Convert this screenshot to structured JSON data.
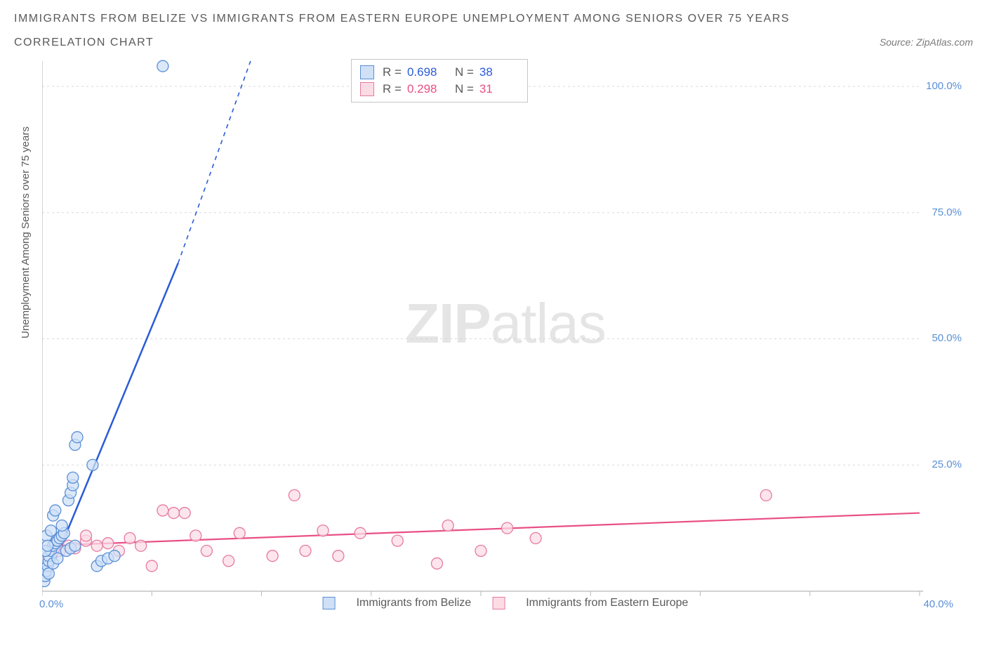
{
  "title": "IMMIGRANTS FROM BELIZE VS IMMIGRANTS FROM EASTERN EUROPE UNEMPLOYMENT AMONG SENIORS OVER 75 YEARS",
  "subtitle": "CORRELATION CHART",
  "source_label": "Source: ZipAtlas.com",
  "yaxis_label": "Unemployment Among Seniors over 75 years",
  "watermark_bold": "ZIP",
  "watermark_light": "atlas",
  "chart": {
    "type": "scatter",
    "background_color": "#ffffff",
    "grid_color": "#d9d9d9",
    "axis_color": "#b8b8b8",
    "x_range": [
      0,
      40
    ],
    "y_range": [
      0,
      105
    ],
    "x_ticks": [
      0,
      5,
      10,
      15,
      20,
      25,
      30,
      35,
      40
    ],
    "y_gridlines": [
      25,
      50,
      75,
      100
    ],
    "x_tick_labels": {
      "left": "0.0%",
      "right": "40.0%"
    },
    "y_tick_labels": [
      "25.0%",
      "50.0%",
      "75.0%",
      "100.0%"
    ],
    "label_color_left": "#5a8fd6",
    "label_color_right": "#5a8fd6",
    "series": [
      {
        "name": "Immigrants from Belize",
        "color_fill": "#cfe0f7",
        "color_stroke": "#5a8fd6",
        "line_color": "#2a5bd7",
        "marker_radius": 8,
        "stats": {
          "R": "0.698",
          "N": "38"
        },
        "trend": {
          "x1": 0.2,
          "y1": 2,
          "x2_solid": 6.2,
          "y2_solid": 65,
          "x2_dash": 9.5,
          "y2_dash": 105
        },
        "points": [
          [
            0.1,
            2
          ],
          [
            0.15,
            3
          ],
          [
            0.2,
            4
          ],
          [
            0.25,
            5
          ],
          [
            0.3,
            6
          ],
          [
            0.3,
            7
          ],
          [
            0.4,
            8
          ],
          [
            0.5,
            9
          ],
          [
            0.6,
            9.5
          ],
          [
            0.7,
            10
          ],
          [
            0.8,
            10.5
          ],
          [
            0.9,
            11
          ],
          [
            1.0,
            11.5
          ],
          [
            0.3,
            3.5
          ],
          [
            0.5,
            5.5
          ],
          [
            0.7,
            6.5
          ],
          [
            1.1,
            8
          ],
          [
            1.3,
            8.5
          ],
          [
            1.5,
            9
          ],
          [
            0.5,
            15
          ],
          [
            0.6,
            16
          ],
          [
            1.2,
            18
          ],
          [
            1.3,
            19.5
          ],
          [
            1.4,
            21
          ],
          [
            1.4,
            22.5
          ],
          [
            1.5,
            29
          ],
          [
            1.6,
            30.5
          ],
          [
            2.3,
            25
          ],
          [
            2.5,
            5
          ],
          [
            2.7,
            6
          ],
          [
            3.0,
            6.5
          ],
          [
            3.3,
            7
          ],
          [
            0.2,
            11
          ],
          [
            0.4,
            12
          ],
          [
            0.9,
            13
          ],
          [
            0.15,
            8
          ],
          [
            0.25,
            9
          ],
          [
            5.5,
            104
          ]
        ]
      },
      {
        "name": "Immigrants from Eastern Europe",
        "color_fill": "#fbdce5",
        "color_stroke": "#e67aa0",
        "line_color": "#e94f86",
        "marker_radius": 8,
        "stats": {
          "R": "0.298",
          "N": "31"
        },
        "trend": {
          "x1": 0,
          "y1": 9,
          "x2_solid": 40,
          "y2_solid": 15.5
        },
        "points": [
          [
            0.8,
            8
          ],
          [
            1.2,
            9
          ],
          [
            1.5,
            8.5
          ],
          [
            2.0,
            10
          ],
          [
            2.5,
            9
          ],
          [
            3.0,
            9.5
          ],
          [
            3.5,
            8
          ],
          [
            4.0,
            10.5
          ],
          [
            4.5,
            9
          ],
          [
            5.0,
            5
          ],
          [
            5.5,
            16
          ],
          [
            6.0,
            15.5
          ],
          [
            6.5,
            15.5
          ],
          [
            7.0,
            11
          ],
          [
            7.5,
            8
          ],
          [
            8.5,
            6
          ],
          [
            9.0,
            11.5
          ],
          [
            10.5,
            7
          ],
          [
            11.5,
            19
          ],
          [
            12.0,
            8
          ],
          [
            12.8,
            12
          ],
          [
            13.5,
            7
          ],
          [
            14.5,
            11.5
          ],
          [
            16.2,
            10
          ],
          [
            18.0,
            5.5
          ],
          [
            18.5,
            13
          ],
          [
            20.0,
            8
          ],
          [
            21.2,
            12.5
          ],
          [
            22.5,
            10.5
          ],
          [
            33.0,
            19
          ],
          [
            2.0,
            11
          ]
        ]
      }
    ]
  },
  "legend": {
    "series_a": "Immigrants from Belize",
    "series_b": "Immigrants from Eastern Europe"
  }
}
